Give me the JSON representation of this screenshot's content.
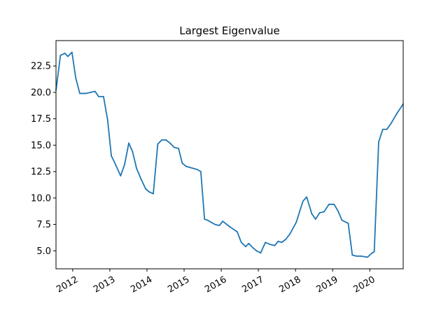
{
  "chart_data": {
    "type": "line",
    "title": "Largest Eigenvalue",
    "xlabel": "",
    "ylabel": "",
    "xlim": [
      2011.55,
      2020.9
    ],
    "ylim": [
      3.3,
      24.9
    ],
    "grid": false,
    "legend": "none",
    "x_tick_labels": [
      "2012",
      "2013",
      "2014",
      "2015",
      "2016",
      "2017",
      "2018",
      "2019",
      "2020"
    ],
    "x_tick_values": [
      2012,
      2013,
      2014,
      2015,
      2016,
      2017,
      2018,
      2019,
      2020
    ],
    "y_tick_labels": [
      "5.0",
      "7.5",
      "10.0",
      "12.5",
      "15.0",
      "17.5",
      "20.0",
      "22.5"
    ],
    "y_tick_values": [
      5.0,
      7.5,
      10.0,
      12.5,
      15.0,
      17.5,
      20.0,
      22.5
    ],
    "series": [
      {
        "name": "",
        "color": "#1f77b4",
        "x": [
          2011.55,
          2011.67,
          2011.79,
          2011.87,
          2011.98,
          2012.08,
          2012.19,
          2012.35,
          2012.48,
          2012.6,
          2012.7,
          2012.83,
          2012.94,
          2013.04,
          2013.15,
          2013.29,
          2013.4,
          2013.51,
          2013.61,
          2013.72,
          2013.84,
          2013.96,
          2014.05,
          2014.17,
          2014.29,
          2014.4,
          2014.51,
          2014.62,
          2014.73,
          2014.85,
          2014.95,
          2015.05,
          2015.15,
          2015.35,
          2015.45,
          2015.55,
          2015.63,
          2015.83,
          2015.95,
          2016.04,
          2016.22,
          2016.43,
          2016.54,
          2016.66,
          2016.74,
          2016.85,
          2016.95,
          2017.06,
          2017.19,
          2017.32,
          2017.44,
          2017.53,
          2017.63,
          2017.74,
          2017.85,
          2018.02,
          2018.2,
          2018.3,
          2018.44,
          2018.54,
          2018.65,
          2018.77,
          2018.9,
          2019.04,
          2019.14,
          2019.25,
          2019.42,
          2019.53,
          2019.64,
          2019.76,
          2019.94,
          2020.06,
          2020.12,
          2020.24,
          2020.35,
          2020.46,
          2020.58,
          2020.73,
          2020.9
        ],
        "y": [
          20.2,
          23.5,
          23.7,
          23.4,
          23.8,
          21.4,
          19.9,
          19.9,
          20.0,
          20.1,
          19.6,
          19.6,
          17.4,
          14.0,
          13.2,
          12.1,
          13.2,
          15.2,
          14.4,
          12.8,
          11.8,
          10.9,
          10.6,
          10.4,
          15.1,
          15.5,
          15.5,
          15.2,
          14.8,
          14.7,
          13.3,
          13.0,
          12.9,
          12.7,
          12.5,
          8.0,
          7.9,
          7.5,
          7.4,
          7.8,
          7.3,
          6.8,
          5.8,
          5.4,
          5.7,
          5.3,
          5.0,
          4.8,
          5.8,
          5.6,
          5.5,
          5.9,
          5.8,
          6.1,
          6.6,
          7.7,
          9.7,
          10.1,
          8.5,
          8.0,
          8.6,
          8.7,
          9.4,
          9.4,
          8.8,
          7.9,
          7.6,
          4.6,
          4.5,
          4.5,
          4.4,
          4.8,
          4.9,
          15.3,
          16.5,
          16.5,
          17.1,
          18.0,
          18.9
        ]
      }
    ]
  }
}
